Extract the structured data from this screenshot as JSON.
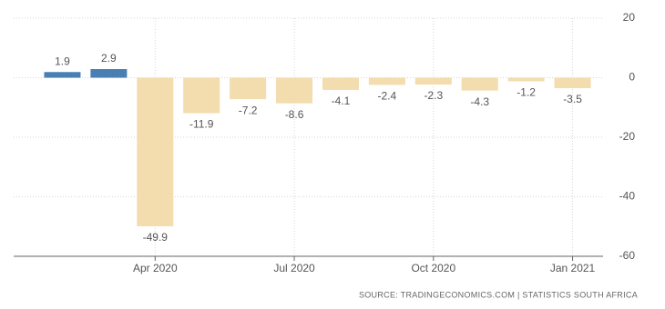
{
  "chart_data": {
    "type": "bar",
    "categories": [
      null,
      null,
      "Apr 2020",
      null,
      null,
      "Jul 2020",
      null,
      null,
      "Oct 2020",
      null,
      null,
      "Jan 2021"
    ],
    "values": [
      1.9,
      2.9,
      -49.9,
      -11.9,
      -7.2,
      -8.6,
      -4.1,
      -2.4,
      -2.3,
      -4.3,
      -1.2,
      -3.5
    ],
    "positive_color": "#4a7fb3",
    "negative_color": "#f3dcad",
    "ylim": [
      -60,
      20
    ],
    "yticks": [
      -60,
      -40,
      -20,
      0,
      20
    ],
    "grid": true,
    "source": "SOURCE: TRADINGECONOMICS.COM | STATISTICS SOUTH AFRICA"
  }
}
